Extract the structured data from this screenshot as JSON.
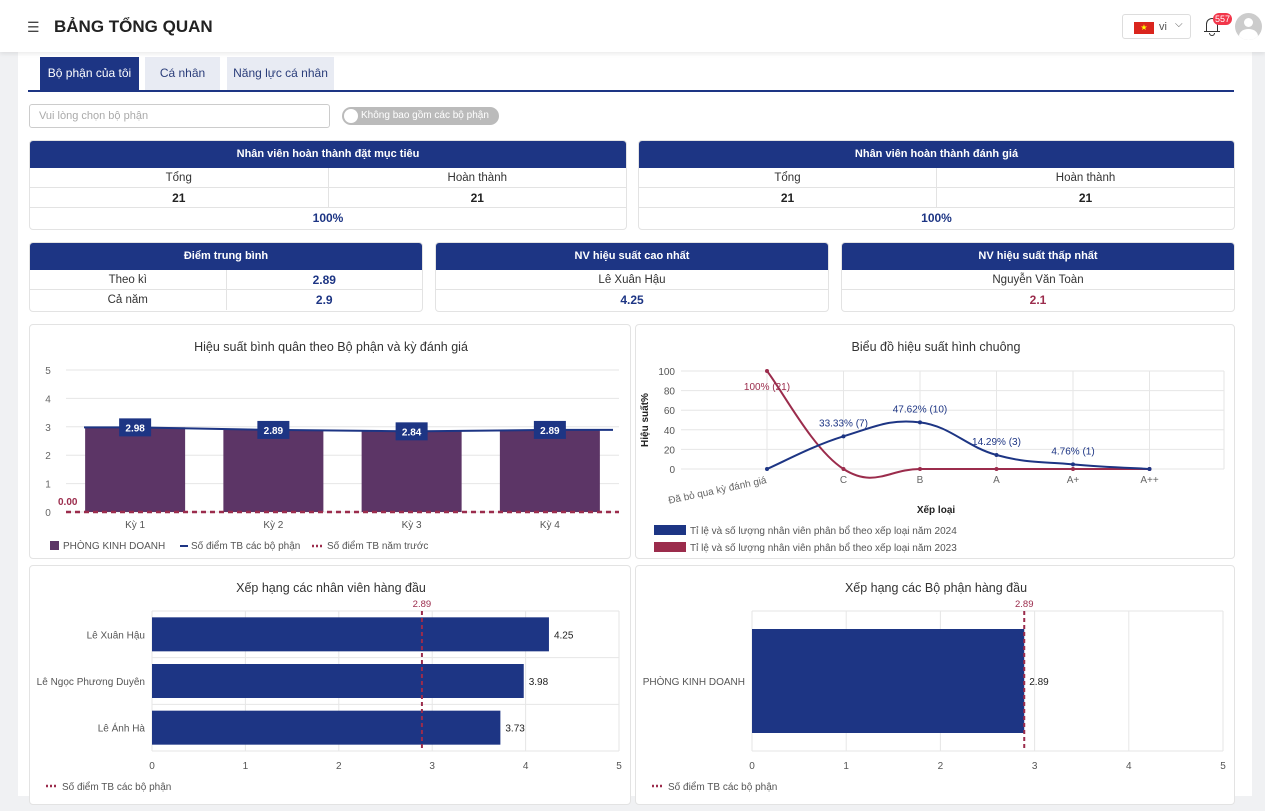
{
  "header": {
    "title": "BẢNG TỔNG QUAN",
    "menu_icon": "menu-fold-icon",
    "language": "vi",
    "notification_count": "557"
  },
  "tabs": [
    {
      "label": "Bộ phận của tôi",
      "active": true
    },
    {
      "label": "Cá nhân"
    },
    {
      "label": "Năng lực cá nhân"
    }
  ],
  "filters": {
    "department_placeholder": "Vui lòng chọn bộ phận",
    "exclude_toggle_label": "Không bao gồm các bộ phận con",
    "exclude_toggle_on": false
  },
  "goal_card": {
    "title": "Nhân viên hoàn thành đặt mục tiêu",
    "total_label": "Tổng",
    "done_label": "Hoàn thành",
    "total": "21",
    "done": "21",
    "percent": "100%"
  },
  "review_card": {
    "title": "Nhân viên hoàn thành đánh giá",
    "total_label": "Tổng",
    "done_label": "Hoàn thành",
    "total": "21",
    "done": "21",
    "percent": "100%"
  },
  "avg_card": {
    "title": "Điểm trung bình",
    "period_label": "Theo kì",
    "period_value": "2.89",
    "year_label": "Cả năm",
    "year_value": "2.9"
  },
  "top_card": {
    "title": "NV hiệu suất cao nhất",
    "name": "Lê Xuân Hậu",
    "score": "4.25"
  },
  "low_card": {
    "title": "NV hiệu suất thấp nhất",
    "name": "Nguyễn Văn Toàn",
    "score": "2.1"
  },
  "colors": {
    "navy": "#1d3584",
    "purple": "#5c3566",
    "maroon": "#9b2c4c"
  },
  "chart_data": [
    {
      "type": "bar",
      "title": "Hiệu suất bình quân theo Bộ phận và kỳ đánh giá",
      "categories": [
        "Kỳ 1",
        "Kỳ 2",
        "Kỳ 3",
        "Kỳ 4"
      ],
      "ylim": [
        0,
        5
      ],
      "yticks": [
        "0",
        "1",
        "2",
        "3",
        "4",
        "5"
      ],
      "series": [
        {
          "name": "PHÒNG KINH DOANH",
          "kind": "bar",
          "values": [
            2.98,
            2.89,
            2.84,
            2.89
          ]
        },
        {
          "name": "Số điểm TB các bộ phận",
          "kind": "line",
          "values": [
            2.98,
            2.89,
            2.84,
            2.89
          ],
          "labels": [
            "2.98",
            "2.89",
            "2.84",
            "2.89"
          ]
        },
        {
          "name": "Số điểm TB năm trước",
          "kind": "dashed-line",
          "values": [
            0,
            0,
            0,
            0
          ],
          "label": "0.00"
        }
      ],
      "legend": "bottom-left",
      "grid": true
    },
    {
      "type": "line",
      "title": "Biểu đồ hiệu suất hình chuông",
      "xlabel": "Xếp loại",
      "ylabel": "Hiệu suất%",
      "categories": [
        "Đã bỏ qua kỳ đánh giá",
        "C",
        "B",
        "A",
        "A+",
        "A++"
      ],
      "ylim": [
        0,
        100
      ],
      "yticks": [
        "0",
        "20",
        "40",
        "60",
        "80",
        "100"
      ],
      "series": [
        {
          "name": "Tỉ lệ và số lượng nhân viên phân bổ theo xếp loại năm 2024",
          "values": [
            0,
            33.33,
            47.62,
            14.29,
            4.76,
            0
          ],
          "labels": [
            "",
            "33.33% (7)",
            "47.62% (10)",
            "14.29% (3)",
            "4.76% (1)",
            ""
          ]
        },
        {
          "name": "Tỉ lệ và số lượng nhân viên phân bổ theo xếp loại năm 2023",
          "values": [
            100,
            0,
            0,
            0,
            0,
            0
          ],
          "labels": [
            "100% (21)",
            "",
            "",
            "",
            "",
            ""
          ]
        }
      ],
      "legend": "bottom-left",
      "grid": true
    },
    {
      "type": "bar",
      "orientation": "horizontal",
      "title": "Xếp hạng các nhân viên hàng đầu",
      "categories": [
        "Lê Xuân Hậu",
        "Lê Ngọc Phương Duyên",
        "Lê Ánh Hà"
      ],
      "values": [
        4.25,
        3.98,
        3.73
      ],
      "labels": [
        "4.25",
        "3.98",
        "3.73"
      ],
      "xlim": [
        0,
        5
      ],
      "xticks": [
        "0",
        "1",
        "2",
        "3",
        "4",
        "5"
      ],
      "reference": {
        "name": "Số điểm TB các bộ phận",
        "value": 2.89,
        "label": "2.89"
      },
      "legend": "bottom-left",
      "grid": true
    },
    {
      "type": "bar",
      "orientation": "horizontal",
      "title": "Xếp hạng các Bộ phận hàng đầu",
      "categories": [
        "PHÒNG KINH DOANH"
      ],
      "values": [
        2.89
      ],
      "labels": [
        "2.89"
      ],
      "xlim": [
        0,
        5
      ],
      "xticks": [
        "0",
        "1",
        "2",
        "3",
        "4",
        "5"
      ],
      "reference": {
        "name": "Số điểm TB các bộ phận",
        "value": 2.89,
        "label": "2.89"
      },
      "legend": "bottom-left",
      "grid": true
    }
  ]
}
